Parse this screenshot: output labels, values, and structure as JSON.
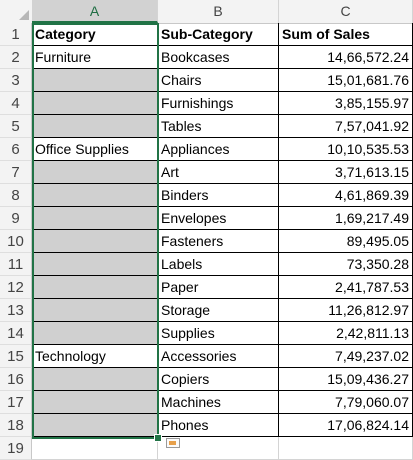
{
  "columns": [
    "A",
    "B",
    "C"
  ],
  "row_numbers": [
    "1",
    "2",
    "3",
    "4",
    "5",
    "6",
    "7",
    "8",
    "9",
    "10",
    "11",
    "12",
    "13",
    "14",
    "15",
    "16",
    "17",
    "18",
    "19"
  ],
  "header": {
    "category": "Category",
    "subcategory": "Sub-Category",
    "sales": "Sum of Sales"
  },
  "rows": [
    {
      "category": "Furniture",
      "subcategory": "Bookcases",
      "sales": "14,66,572.24"
    },
    {
      "category": "",
      "subcategory": "Chairs",
      "sales": "15,01,681.76"
    },
    {
      "category": "",
      "subcategory": "Furnishings",
      "sales": "3,85,155.97"
    },
    {
      "category": "",
      "subcategory": "Tables",
      "sales": "7,57,041.92"
    },
    {
      "category": "Office Supplies",
      "subcategory": "Appliances",
      "sales": "10,10,535.53"
    },
    {
      "category": "",
      "subcategory": "Art",
      "sales": "3,71,613.15"
    },
    {
      "category": "",
      "subcategory": "Binders",
      "sales": "4,61,869.39"
    },
    {
      "category": "",
      "subcategory": "Envelopes",
      "sales": "1,69,217.49"
    },
    {
      "category": "",
      "subcategory": "Fasteners",
      "sales": "89,495.05"
    },
    {
      "category": "",
      "subcategory": "Labels",
      "sales": "73,350.28"
    },
    {
      "category": "",
      "subcategory": "Paper",
      "sales": "2,41,787.53"
    },
    {
      "category": "",
      "subcategory": "Storage",
      "sales": "11,26,812.97"
    },
    {
      "category": "",
      "subcategory": "Supplies",
      "sales": "2,42,811.13"
    },
    {
      "category": "Technology",
      "subcategory": "Accessories",
      "sales": "7,49,237.02"
    },
    {
      "category": "",
      "subcategory": "Copiers",
      "sales": "15,09,436.27"
    },
    {
      "category": "",
      "subcategory": "Machines",
      "sales": "7,79,060.07"
    },
    {
      "category": "",
      "subcategory": "Phones",
      "sales": "17,06,824.14"
    }
  ],
  "selected_column": "A",
  "icons": {
    "quick_analysis": "quick-analysis-icon"
  }
}
